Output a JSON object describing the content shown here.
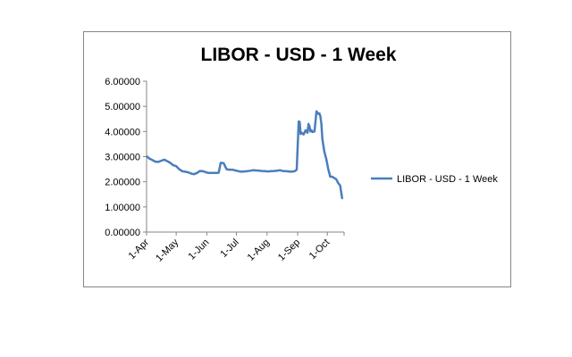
{
  "chart_data": {
    "type": "line",
    "title": "LIBOR - USD - 1 Week",
    "xlabel": "",
    "ylabel": "",
    "ylim": [
      0,
      6
    ],
    "yticks": [
      "0.00000",
      "1.00000",
      "2.00000",
      "3.00000",
      "4.00000",
      "5.00000",
      "6.00000"
    ],
    "xticks": [
      {
        "label": "1-Apr",
        "day": 0
      },
      {
        "label": "1-May",
        "day": 30
      },
      {
        "label": "1-Jun",
        "day": 61
      },
      {
        "label": "1-Jul",
        "day": 91
      },
      {
        "label": "1-Aug",
        "day": 122
      },
      {
        "label": "1-Sep",
        "day": 153
      },
      {
        "label": "1-Oct",
        "day": 183
      }
    ],
    "xlim": [
      0,
      200
    ],
    "grid": false,
    "legend": "right",
    "series": [
      {
        "name": "LIBOR - USD - 1 Week",
        "color": "#4a7ebb",
        "x": [
          0,
          3,
          6,
          9,
          12,
          15,
          18,
          21,
          24,
          27,
          30,
          33,
          36,
          39,
          42,
          45,
          48,
          51,
          54,
          57,
          60,
          63,
          66,
          68,
          69,
          71,
          73,
          75,
          78,
          81,
          84,
          87,
          90,
          93,
          96,
          99,
          102,
          105,
          108,
          111,
          114,
          117,
          120,
          123,
          126,
          129,
          132,
          135,
          138,
          141,
          144,
          147,
          150,
          152,
          154,
          155,
          156,
          157,
          159,
          161,
          162,
          163,
          164,
          165,
          166,
          167,
          168,
          170,
          172,
          173,
          174,
          175,
          176,
          177,
          178,
          180,
          182,
          184,
          186,
          188,
          190,
          192,
          194,
          196,
          197,
          198,
          199
        ],
        "values": [
          3.02,
          2.92,
          2.86,
          2.8,
          2.79,
          2.84,
          2.88,
          2.82,
          2.75,
          2.66,
          2.62,
          2.5,
          2.42,
          2.4,
          2.38,
          2.33,
          2.3,
          2.35,
          2.43,
          2.42,
          2.38,
          2.35,
          2.35,
          2.35,
          2.35,
          2.35,
          2.36,
          2.75,
          2.74,
          2.5,
          2.48,
          2.48,
          2.45,
          2.42,
          2.4,
          2.41,
          2.42,
          2.44,
          2.46,
          2.45,
          2.44,
          2.43,
          2.42,
          2.41,
          2.42,
          2.43,
          2.44,
          2.46,
          2.43,
          2.42,
          2.41,
          2.4,
          2.42,
          2.48,
          4.4,
          4.38,
          3.9,
          3.95,
          3.88,
          4.05,
          4.0,
          3.95,
          4.3,
          4.2,
          4.0,
          4.05,
          3.98,
          4.0,
          4.8,
          4.75,
          4.7,
          4.72,
          4.6,
          4.3,
          3.7,
          3.2,
          2.9,
          2.5,
          2.2,
          2.2,
          2.15,
          2.1,
          1.95,
          1.85,
          1.6,
          1.35,
          1.35
        ]
      }
    ]
  }
}
